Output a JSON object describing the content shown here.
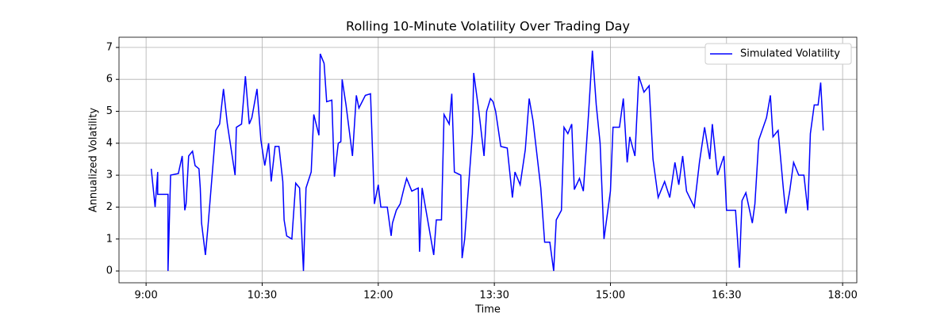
{
  "chart_data": {
    "type": "line",
    "title": "Rolling 10-Minute Volatility Over Trading Day",
    "x_label": "Time",
    "y_label": "Annualized Volatility",
    "x": [
      544,
      547,
      549,
      549,
      557,
      557,
      559,
      565,
      568,
      570,
      571,
      573,
      576,
      578,
      581,
      582,
      583,
      586,
      588,
      594,
      597,
      600,
      603,
      606,
      609,
      610,
      614,
      617,
      620,
      622,
      626,
      629,
      632,
      635,
      637,
      640,
      643,
      646,
      647,
      649,
      653,
      656,
      659,
      662,
      664,
      668,
      670,
      674,
      675,
      678,
      680,
      684,
      686,
      689,
      691,
      692,
      695,
      700,
      703,
      705,
      710,
      714,
      717,
      720,
      722,
      727,
      730,
      731,
      734,
      737,
      740,
      742,
      746,
      751,
      752,
      754,
      763,
      765,
      769,
      771,
      775,
      777,
      779,
      784,
      785,
      787,
      790,
      793,
      794,
      798,
      802,
      804,
      807,
      809,
      811,
      815,
      820,
      824,
      826,
      830,
      834,
      837,
      840,
      842,
      846,
      849,
      853,
      856,
      858,
      862,
      864,
      867,
      870,
      872,
      876,
      879,
      883,
      886,
      889,
      892,
      895,
      900,
      902,
      907,
      910,
      913,
      915,
      919,
      922,
      926,
      930,
      933,
      934,
      937,
      942,
      946,
      950,
      953,
      956,
      959,
      965,
      969,
      973,
      977,
      979,
      983,
      988,
      990,
      997,
      1000,
      1002,
      1005,
      1010,
      1012,
      1015,
      1021,
      1024,
      1026,
      1030,
      1034,
      1036,
      1039,
      1042,
      1046,
      1050,
      1053,
      1055,
      1058,
      1061,
      1063,
      1065
    ],
    "series": [
      {
        "name": "Simulated Volatility",
        "color": "#0000ff",
        "values": [
          3.2,
          2.0,
          3.1,
          2.4,
          2.4,
          0.0,
          3.0,
          3.05,
          3.6,
          1.9,
          2.1,
          3.6,
          3.75,
          3.3,
          3.2,
          2.6,
          1.5,
          0.5,
          1.4,
          4.4,
          4.6,
          5.7,
          4.6,
          3.8,
          3.0,
          4.5,
          4.6,
          6.1,
          4.6,
          4.8,
          5.7,
          4.1,
          3.3,
          4.0,
          2.8,
          3.9,
          3.9,
          2.8,
          1.6,
          1.1,
          1.0,
          2.75,
          2.6,
          0.0,
          2.6,
          3.1,
          4.9,
          4.25,
          6.8,
          6.5,
          5.3,
          5.35,
          2.95,
          4.0,
          4.05,
          6.0,
          5.2,
          3.6,
          5.5,
          5.1,
          5.5,
          5.55,
          2.1,
          2.7,
          2.0,
          2.0,
          1.1,
          1.5,
          1.9,
          2.1,
          2.6,
          2.9,
          2.5,
          2.6,
          0.6,
          2.6,
          0.5,
          1.6,
          1.6,
          4.9,
          4.6,
          5.55,
          3.1,
          3.0,
          0.4,
          1.0,
          2.65,
          4.3,
          6.2,
          5.0,
          3.6,
          5.0,
          5.4,
          5.3,
          5.0,
          3.9,
          3.85,
          2.3,
          3.1,
          2.7,
          3.8,
          5.4,
          4.7,
          4.0,
          2.6,
          0.9,
          0.9,
          0.0,
          1.6,
          1.9,
          4.5,
          4.3,
          4.6,
          2.55,
          2.9,
          2.5,
          4.9,
          6.9,
          5.2,
          4.0,
          1.0,
          2.5,
          4.5,
          4.5,
          5.4,
          3.4,
          4.2,
          3.6,
          6.1,
          5.6,
          5.8,
          3.5,
          3.2,
          2.3,
          2.8,
          2.3,
          3.4,
          2.7,
          3.6,
          2.5,
          2.0,
          3.4,
          4.5,
          3.5,
          4.6,
          3.0,
          3.6,
          1.9,
          1.9,
          0.1,
          2.2,
          2.45,
          1.5,
          2.1,
          4.1,
          4.8,
          5.5,
          4.2,
          4.4,
          2.6,
          1.8,
          2.5,
          3.4,
          3.0,
          3.0,
          1.9,
          4.3,
          5.2,
          5.2,
          5.9,
          4.4
        ]
      }
    ],
    "xlim": [
      519,
      1091
    ],
    "xticks": [
      {
        "value": 540,
        "label": "9:00"
      },
      {
        "value": 630,
        "label": "10:30"
      },
      {
        "value": 720,
        "label": "12:00"
      },
      {
        "value": 810,
        "label": "13:30"
      },
      {
        "value": 900,
        "label": "15:00"
      },
      {
        "value": 990,
        "label": "16:30"
      },
      {
        "value": 1080,
        "label": "18:00"
      }
    ],
    "ylim": [
      -0.37,
      7.32
    ],
    "yticks": [
      0,
      1,
      2,
      3,
      4,
      5,
      6,
      7
    ],
    "grid": true,
    "legend": "upper right"
  }
}
